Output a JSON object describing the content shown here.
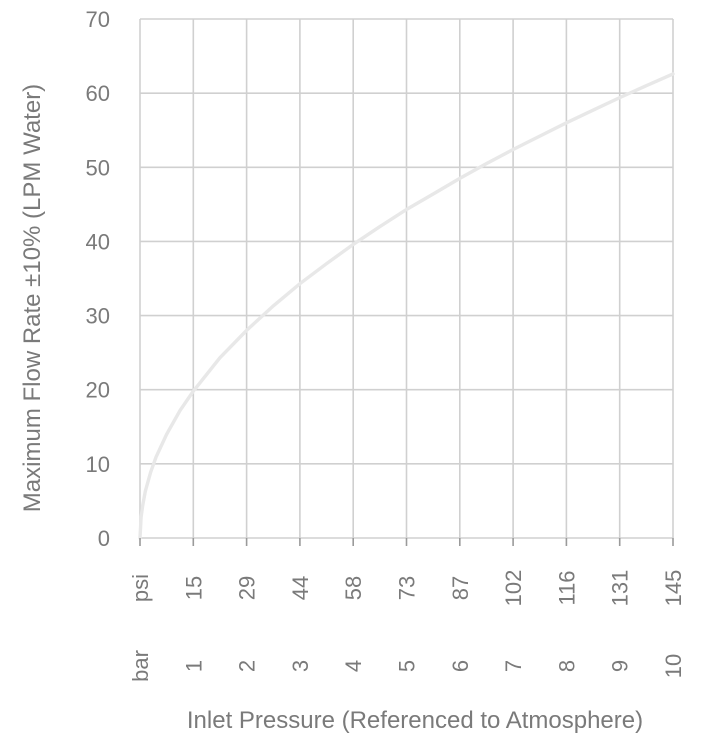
{
  "chart_data": {
    "type": "line",
    "title": "",
    "ylabel": "Maximum Flow Rate ±10% (LPM Water)",
    "xlabel": "Inlet Pressure (Referenced to Atmosphere)",
    "ylim": [
      0,
      70
    ],
    "yticks": [
      "0",
      "10",
      "20",
      "30",
      "40",
      "50",
      "60",
      "70"
    ],
    "xlim": [
      0,
      10
    ],
    "x_unit_rows": [
      {
        "unit": "psi",
        "labels": [
          "15",
          "29",
          "44",
          "58",
          "73",
          "87",
          "102",
          "116",
          "131",
          "145"
        ]
      },
      {
        "unit": "bar",
        "labels": [
          "1",
          "2",
          "3",
          "4",
          "5",
          "6",
          "7",
          "8",
          "9",
          "10"
        ]
      }
    ],
    "grid": true,
    "series": [
      {
        "x": [
          0,
          0.02,
          0.05,
          0.1,
          0.2,
          0.3,
          0.5,
          0.75,
          1,
          1.5,
          2,
          2.5,
          3,
          3.5,
          4,
          4.5,
          5,
          5.5,
          6,
          6.5,
          7,
          7.5,
          8,
          8.5,
          9,
          9.5,
          10
        ],
        "y": [
          0,
          2.8,
          4.4,
          6.3,
          8.9,
          10.9,
          14.0,
          17.2,
          19.8,
          24.3,
          28.0,
          31.3,
          34.3,
          37.0,
          39.6,
          42.0,
          44.3,
          46.4,
          48.5,
          50.5,
          52.4,
          54.2,
          56.0,
          57.7,
          59.4,
          61.0,
          62.6
        ]
      }
    ]
  },
  "colors": {
    "curve": "#e8e8e8",
    "grid": "#d0d0d0",
    "text": "#7a7a7a"
  }
}
